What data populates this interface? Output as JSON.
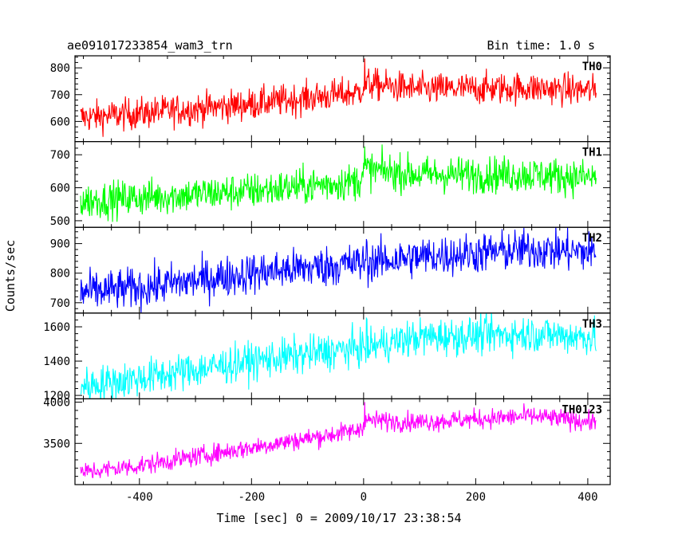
{
  "header": {
    "title": "ae091017233854_wam3_trn",
    "bin_time": "Bin time: 1.0 s"
  },
  "chart_data": {
    "type": "line",
    "title": "ae091017233854_wam3_trn",
    "xlabel": "Time [sec] 0 = 2009/10/17 23:38:54",
    "ylabel": "Counts/sec",
    "xlim": [
      -515,
      440
    ],
    "x_ticks": [
      "-400",
      "-200",
      "0",
      "200",
      "400"
    ],
    "x_tick_values": [
      -400,
      -200,
      0,
      200,
      400
    ],
    "panels": [
      {
        "name": "TH0",
        "color": "#ff0000",
        "ylim": [
          525,
          845
        ],
        "yticks": [
          600,
          700,
          800
        ],
        "ytick_labels": [
          "600",
          "700",
          "800"
        ],
        "trend_x": [
          -500,
          -400,
          -200,
          -10,
          5,
          100,
          300,
          410
        ],
        "trend_y": [
          615,
          630,
          665,
          708,
          740,
          720,
          725,
          715
        ],
        "noise_sd": 30,
        "spike_x": 2,
        "spike_y": 835
      },
      {
        "name": "TH1",
        "color": "#00ff00",
        "ylim": [
          480,
          740
        ],
        "yticks": [
          500,
          600,
          700
        ],
        "ytick_labels": [
          "500",
          "600",
          "700"
        ],
        "trend_x": [
          -500,
          -400,
          -200,
          -10,
          5,
          100,
          300,
          410
        ],
        "trend_y": [
          560,
          570,
          590,
          620,
          655,
          640,
          640,
          630
        ],
        "noise_sd": 28,
        "spike_x": 2,
        "spike_y": 725
      },
      {
        "name": "TH2",
        "color": "#0000ff",
        "ylim": [
          665,
          955
        ],
        "yticks": [
          700,
          800,
          900
        ],
        "ytick_labels": [
          "700",
          "800",
          "900"
        ],
        "trend_x": [
          -500,
          -400,
          -200,
          0,
          100,
          300,
          410
        ],
        "trend_y": [
          735,
          750,
          800,
          835,
          855,
          880,
          870
        ],
        "noise_sd": 35,
        "spike_x": 5,
        "spike_y": 915
      },
      {
        "name": "TH3",
        "color": "#00ffff",
        "ylim": [
          1180,
          1680
        ],
        "yticks": [
          1200,
          1400,
          1600
        ],
        "ytick_labels": [
          "1200",
          "1400",
          "1600"
        ],
        "trend_x": [
          -500,
          -400,
          -200,
          0,
          100,
          300,
          410
        ],
        "trend_y": [
          1255,
          1300,
          1400,
          1480,
          1540,
          1560,
          1540
        ],
        "noise_sd": 55,
        "spike_x": 5,
        "spike_y": 1650
      },
      {
        "name": "TH0123",
        "color": "#ff00ff",
        "ylim": [
          3000,
          4040
        ],
        "yticks": [
          3500,
          4000
        ],
        "ytick_labels": [
          "3500",
          "4000"
        ],
        "trend_x": [
          -500,
          -400,
          -200,
          -10,
          5,
          100,
          300,
          410
        ],
        "trend_y": [
          3150,
          3230,
          3450,
          3660,
          3780,
          3760,
          3830,
          3760
        ],
        "noise_sd": 60,
        "spike_x": 2,
        "spike_y": 4000
      }
    ]
  }
}
